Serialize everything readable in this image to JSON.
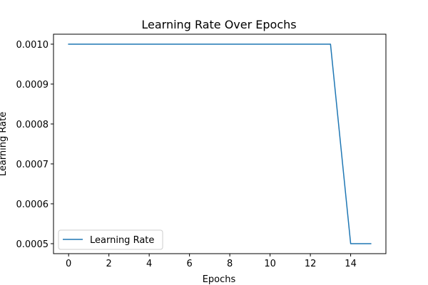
{
  "chart_data": {
    "type": "line",
    "title": "Learning Rate Over Epochs",
    "xlabel": "Epochs",
    "ylabel": "Learning Rate",
    "xlim": [
      -0.75,
      15.75
    ],
    "ylim": [
      0.000475,
      0.001025
    ],
    "xticks": [
      0,
      2,
      4,
      6,
      8,
      10,
      12,
      14
    ],
    "yticks": [
      0.0005,
      0.0006,
      0.0007,
      0.0008,
      0.0009,
      0.001
    ],
    "ytick_labels": [
      "0.0005",
      "0.0006",
      "0.0007",
      "0.0008",
      "0.0009",
      "0.0010"
    ],
    "grid": false,
    "legend_position": "lower-left",
    "series": [
      {
        "name": "Learning Rate",
        "color": "#1f77b4",
        "x": [
          0,
          1,
          2,
          3,
          4,
          5,
          6,
          7,
          8,
          9,
          10,
          11,
          12,
          13,
          14,
          15
        ],
        "y": [
          0.001,
          0.001,
          0.001,
          0.001,
          0.001,
          0.001,
          0.001,
          0.001,
          0.001,
          0.001,
          0.001,
          0.001,
          0.001,
          0.001,
          0.0005,
          0.0005
        ]
      }
    ]
  }
}
